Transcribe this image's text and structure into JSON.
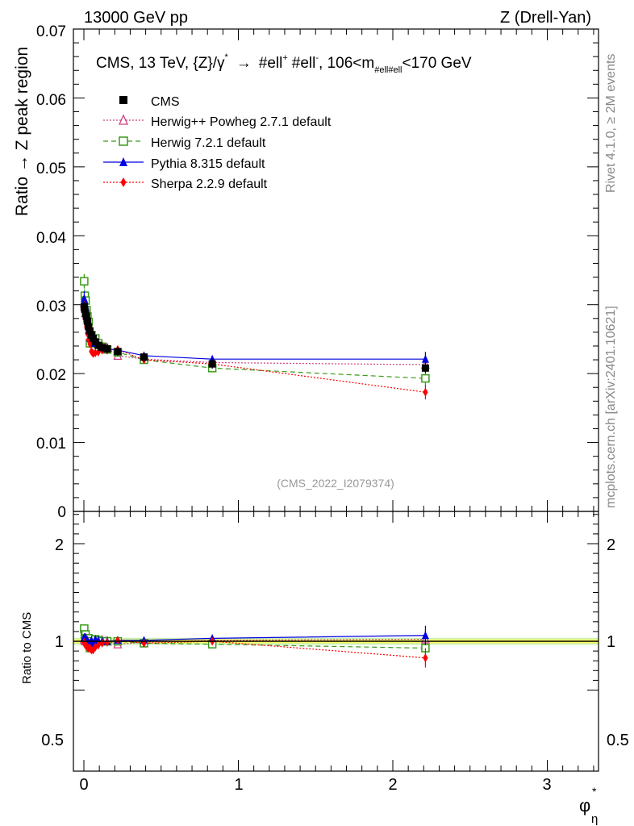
{
  "header": {
    "left": "13000 GeV pp",
    "right": "Z (Drell-Yan)"
  },
  "side_labels": {
    "version": "Rivet 4.1.0, ≥ 2M events",
    "source": "mcplots.cern.ch [arXiv:2401.10621]"
  },
  "watermark": "(CMS_2022_I2079374)",
  "title": {
    "main": "CMS, 13 TeV, {Z}/γ",
    "star": "*",
    "arrow": "→",
    "ell1": "#ell",
    "plus": "+",
    "ell2": "#ell",
    "minus": "-",
    "range_a": ", 106<m",
    "range_sub": "#ell#ell",
    "range_b": "<170 GeV"
  },
  "colors": {
    "cms": "#000000",
    "herwigpp": "#d04080",
    "herwig7": "#3a9a1a",
    "pythia": "#0000e0",
    "sherpa": "#ff0000",
    "band_inner": "#ffff66",
    "band_outer": "#c8f0b0"
  },
  "chart_data": {
    "type": "scatter",
    "xlabel": "φ",
    "xlabel_sup": "*",
    "xlabel_sub": "η",
    "xlim": [
      -0.08,
      3.32
    ],
    "main": {
      "ylabel": "Ratio → Z peak region",
      "ylim": [
        0,
        0.07
      ],
      "yticks": [
        "0",
        "0.01",
        "0.02",
        "0.03",
        "0.04",
        "0.05",
        "0.06",
        "0.07"
      ],
      "xticks": [
        "0",
        "1",
        "2",
        "3"
      ]
    },
    "ratio": {
      "ylabel": "Ratio to CMS",
      "yticks": [
        "0.5",
        "1",
        "2"
      ],
      "right_yticks": [
        "0.5",
        "1",
        "2"
      ],
      "ylim": [
        0.4,
        2.4
      ]
    },
    "x": [
      0.002,
      0.006,
      0.011,
      0.017,
      0.023,
      0.03,
      0.039,
      0.049,
      0.06,
      0.074,
      0.093,
      0.118,
      0.151,
      0.219,
      0.389,
      0.831,
      2.211
    ],
    "series": [
      {
        "name": "CMS",
        "key": "cms",
        "marker": "square-filled",
        "line": "none",
        "values": [
          0.0297,
          0.0293,
          0.0287,
          0.0283,
          0.0276,
          0.0268,
          0.0262,
          0.0256,
          0.0251,
          0.0246,
          0.0241,
          0.0238,
          0.0236,
          0.0232,
          0.0224,
          0.0214,
          0.0208
        ]
      },
      {
        "name": "Herwig++ Powheg 2.7.1 default",
        "key": "herwigpp",
        "marker": "triangle-open",
        "line": "dotted",
        "values": [
          0.0302,
          0.0296,
          0.0288,
          0.0285,
          0.0279,
          0.0271,
          0.0263,
          0.0257,
          0.0253,
          0.0248,
          0.0243,
          0.024,
          0.0237,
          0.0226,
          0.0221,
          0.0216,
          0.0213
        ]
      },
      {
        "name": "Herwig 7.2.1 default",
        "key": "herwig7",
        "marker": "square-open",
        "line": "dashed",
        "values": [
          0.0334,
          0.0313,
          0.0306,
          0.0292,
          0.0283,
          0.0275,
          0.0244,
          0.0256,
          0.0247,
          0.0251,
          0.0244,
          0.0239,
          0.0235,
          0.0231,
          0.022,
          0.0208,
          0.0193
        ]
      },
      {
        "name": "Pythia 8.315 default",
        "key": "pythia",
        "marker": "triangle-filled",
        "line": "solid",
        "values": [
          0.0309,
          0.0306,
          0.0298,
          0.0287,
          0.0279,
          0.0264,
          0.0251,
          0.0258,
          0.0244,
          0.025,
          0.0244,
          0.0237,
          0.0236,
          0.0234,
          0.0226,
          0.0221,
          0.0221
        ]
      },
      {
        "name": "Sherpa 2.2.9 default",
        "key": "sherpa",
        "marker": "diamond-filled",
        "line": "dotted",
        "values": [
          0.0295,
          0.0285,
          0.0276,
          0.0268,
          0.0258,
          0.0249,
          0.0243,
          0.0232,
          0.0229,
          0.023,
          0.0231,
          0.0234,
          0.0234,
          0.0235,
          0.022,
          0.0214,
          0.0173
        ]
      }
    ],
    "ratio_series": [
      {
        "key": "herwigpp",
        "values": [
          1.02,
          1.01,
          1.0,
          1.01,
          1.01,
          1.01,
          1.0,
          1.0,
          1.01,
          1.01,
          1.01,
          1.01,
          1.0,
          0.97,
          0.99,
          1.01,
          1.02
        ]
      },
      {
        "key": "herwig7",
        "values": [
          1.13,
          1.07,
          1.07,
          1.03,
          1.02,
          1.03,
          0.93,
          1.0,
          0.98,
          1.02,
          1.01,
          1.0,
          1.0,
          1.0,
          0.98,
          0.97,
          0.93
        ]
      },
      {
        "key": "pythia",
        "values": [
          1.04,
          1.04,
          1.04,
          1.01,
          1.01,
          0.98,
          0.96,
          1.01,
          0.97,
          1.02,
          1.01,
          1.0,
          1.0,
          1.01,
          1.01,
          1.03,
          1.06
        ]
      },
      {
        "key": "sherpa",
        "values": [
          0.99,
          0.97,
          0.96,
          0.95,
          0.94,
          0.93,
          0.93,
          0.91,
          0.91,
          0.94,
          0.96,
          0.98,
          0.99,
          1.01,
          0.98,
          1.0,
          0.83
        ]
      }
    ]
  }
}
